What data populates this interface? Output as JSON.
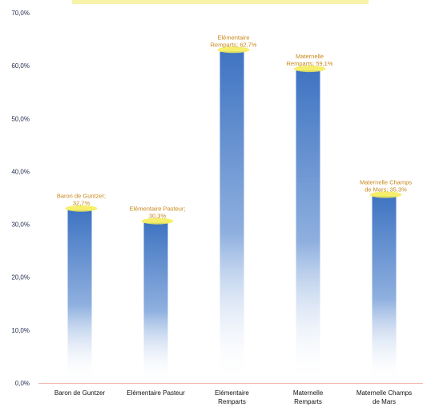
{
  "chart_data": {
    "type": "bar",
    "title": "",
    "xlabel": "",
    "ylabel": "",
    "ylim": [
      0,
      70
    ],
    "yticks": [
      "0,0%",
      "10,0%",
      "20,0%",
      "30,0%",
      "40,0%",
      "50,0%",
      "60,0%",
      "70,0%"
    ],
    "grid": false,
    "categories": [
      [
        "Baron de Guntzer"
      ],
      [
        "Elémentaire Pasteur"
      ],
      [
        "Elémentaire",
        "Remparts"
      ],
      [
        "Maternelle",
        "Remparts"
      ],
      [
        "Maternelle Champs",
        "de Mars"
      ]
    ],
    "values": [
      32.7,
      30.3,
      62.7,
      59.1,
      35.3
    ],
    "data_labels": [
      [
        "Baron de Guntzer;",
        "32,7%"
      ],
      [
        "Elémentaire Pasteur;",
        "30,3%"
      ],
      [
        "Elémentaire",
        "Remparts; 62,7%"
      ],
      [
        "Maternelle",
        "Remparts; 59,1%"
      ],
      [
        "Maternelle Champs",
        "de Mars; 35,3%"
      ]
    ],
    "colors": {
      "bar_top": "#3f74c2",
      "bar_fade": "#ffffff",
      "label_highlight": "#f3ec52",
      "label_text": "#c8871a"
    }
  }
}
